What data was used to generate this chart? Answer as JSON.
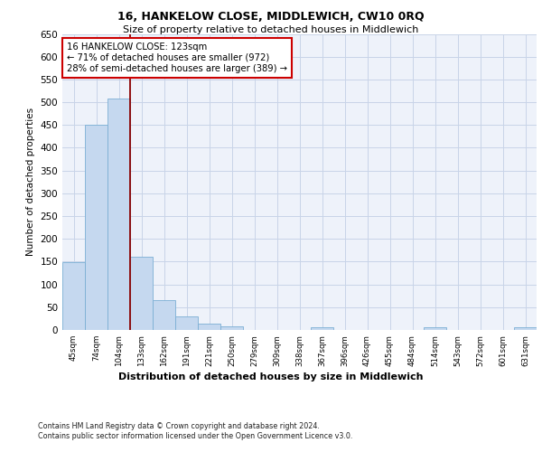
{
  "title": "16, HANKELOW CLOSE, MIDDLEWICH, CW10 0RQ",
  "subtitle": "Size of property relative to detached houses in Middlewich",
  "xlabel": "Distribution of detached houses by size in Middlewich",
  "ylabel": "Number of detached properties",
  "categories": [
    "45sqm",
    "74sqm",
    "104sqm",
    "133sqm",
    "162sqm",
    "191sqm",
    "221sqm",
    "250sqm",
    "279sqm",
    "309sqm",
    "338sqm",
    "367sqm",
    "396sqm",
    "426sqm",
    "455sqm",
    "484sqm",
    "514sqm",
    "543sqm",
    "572sqm",
    "601sqm",
    "631sqm"
  ],
  "values": [
    148,
    450,
    508,
    160,
    65,
    30,
    13,
    8,
    0,
    0,
    0,
    5,
    0,
    0,
    0,
    0,
    5,
    0,
    0,
    0,
    5
  ],
  "bar_color": "#c5d8ef",
  "bar_edge_color": "#7bafd4",
  "grid_color": "#c8d4e8",
  "vline_color": "#8b0000",
  "vline_pos": 2.5,
  "annotation_text": "16 HANKELOW CLOSE: 123sqm\n← 71% of detached houses are smaller (972)\n28% of semi-detached houses are larger (389) →",
  "annotation_box_color": "#ffffff",
  "annotation_box_edgecolor": "#cc0000",
  "ylim": [
    0,
    650
  ],
  "yticks": [
    0,
    50,
    100,
    150,
    200,
    250,
    300,
    350,
    400,
    450,
    500,
    550,
    600,
    650
  ],
  "footnote": "Contains HM Land Registry data © Crown copyright and database right 2024.\nContains public sector information licensed under the Open Government Licence v3.0.",
  "bg_color": "#eef2fa",
  "fig_bg_color": "#ffffff"
}
